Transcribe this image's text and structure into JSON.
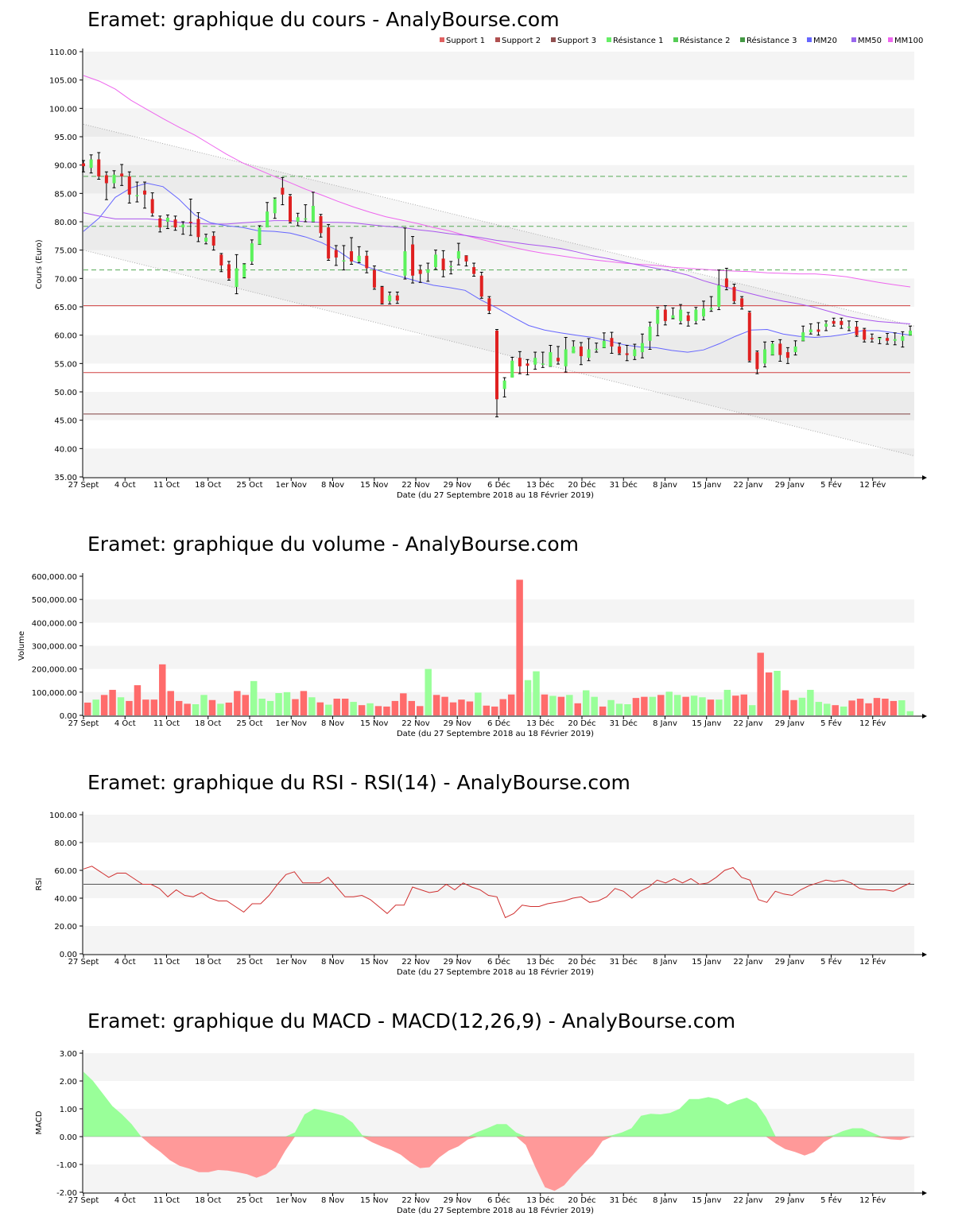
{
  "x_axis": {
    "ticks": [
      "27 Sept",
      "4 Oct",
      "11 Oct",
      "18 Oct",
      "25 Oct",
      "1er Nov",
      "8 Nov",
      "15 Nov",
      "22 Nov",
      "29 Nov",
      "6 Déc",
      "13 Déc",
      "20 Déc",
      "31 Déc",
      "8 Janv",
      "15 Janv",
      "22 Janv",
      "29 Janv",
      "5 Fév",
      "12 Fév"
    ],
    "label": "Date (du 27 Septembre 2018 au 18 Février 2019)"
  },
  "colors": {
    "up": "#5cf25c",
    "down": "#e02020",
    "mm20": "#6666ff",
    "mm50": "#aa55ee",
    "mm100": "#ee66ee",
    "support": "#d04040",
    "resistance": "#55aa55",
    "vol_up": "#99ff99",
    "vol_down": "#ff6b6b",
    "rsi": "#d03030",
    "macd_pos": "#99ff99",
    "macd_neg": "#ff9999"
  },
  "chart_data": [
    {
      "type": "candlestick",
      "title": "Eramet: graphique du cours - AnalyBourse.com",
      "ylabel": "Cours (Euro)",
      "ylim": [
        35,
        110
      ],
      "yticks": [
        "35.00",
        "40.00",
        "45.00",
        "50.00",
        "55.00",
        "60.00",
        "65.00",
        "70.00",
        "75.00",
        "80.00",
        "85.00",
        "90.00",
        "95.00",
        "100.00",
        "105.00",
        "110.00"
      ],
      "legend": [
        "Support 1",
        "Support 2",
        "Support 3",
        "Résistance 1",
        "Résistance 2",
        "Résistance 3",
        "MM20",
        "MM50",
        "MM100"
      ],
      "legend_colors": [
        "#e06060",
        "#b05050",
        "#905050",
        "#66ee66",
        "#55cc55",
        "#449944",
        "#6666ff",
        "#9966ee",
        "#ee66ee"
      ],
      "supports": [
        65.2,
        53.4,
        46.1
      ],
      "resistances": [
        88.0,
        79.2,
        71.5
      ],
      "channel_upper": [
        97.2,
        61.6
      ],
      "channel_lower": [
        75.0,
        38.7
      ],
      "candles": [
        [
          90.3,
          89.8,
          90.8,
          88.8
        ],
        [
          89.5,
          91.0,
          91.8,
          88.6
        ],
        [
          91.0,
          88.0,
          92.2,
          87.5
        ],
        [
          88.2,
          86.8,
          88.8,
          83.9
        ],
        [
          86.8,
          88.3,
          89.0,
          86.0
        ],
        [
          88.5,
          88.0,
          90.1,
          86.4
        ],
        [
          88.0,
          84.8,
          88.8,
          83.3
        ],
        [
          84.5,
          84.7,
          87.0,
          83.5
        ],
        [
          85.5,
          84.8,
          87.0,
          82.4
        ],
        [
          84.0,
          81.5,
          85.1,
          81.0
        ],
        [
          80.6,
          79.0,
          81.0,
          78.2
        ],
        [
          80.0,
          80.7,
          81.2,
          78.8
        ],
        [
          80.4,
          79.0,
          81.0,
          78.5
        ],
        [
          79.0,
          79.5,
          80.0,
          77.8
        ],
        [
          80.0,
          79.8,
          84.0,
          77.6
        ],
        [
          80.5,
          77.3,
          81.6,
          76.5
        ],
        [
          76.5,
          77.2,
          77.8,
          76.1
        ],
        [
          77.5,
          75.8,
          78.2,
          75.0
        ],
        [
          74.2,
          72.3,
          74.4,
          71.2
        ],
        [
          72.5,
          70.0,
          73.0,
          69.7
        ],
        [
          68.5,
          71.8,
          74.2,
          67.3
        ],
        [
          70.2,
          72.5,
          72.6,
          70.1
        ],
        [
          73.0,
          76.2,
          76.8,
          72.5
        ],
        [
          76.0,
          79.0,
          79.3,
          76.0
        ],
        [
          79.0,
          81.8,
          83.4,
          79.2
        ],
        [
          81.5,
          84.0,
          84.2,
          80.6
        ],
        [
          86.0,
          84.8,
          87.8,
          83.0
        ],
        [
          84.5,
          80.0,
          84.8,
          79.8
        ],
        [
          80.0,
          80.8,
          81.5,
          79.3
        ],
        [
          80.5,
          80.6,
          83.0,
          80.0
        ],
        [
          80.0,
          82.8,
          85.2,
          80.0
        ],
        [
          81.0,
          78.0,
          81.3,
          77.3
        ],
        [
          79.0,
          73.5,
          79.5,
          73.2
        ],
        [
          75.0,
          73.7,
          75.8,
          72.3
        ],
        [
          73.0,
          73.2,
          75.8,
          71.5
        ],
        [
          74.8,
          73.0,
          77.2,
          72.5
        ],
        [
          73.0,
          74.0,
          75.6,
          72.8
        ],
        [
          74.0,
          71.8,
          74.8,
          71.0
        ],
        [
          71.5,
          68.4,
          72.2,
          68.1
        ],
        [
          68.5,
          65.6,
          68.6,
          65.5
        ],
        [
          66.0,
          67.0,
          67.6,
          65.5
        ],
        [
          67.0,
          66.1,
          67.6,
          65.6
        ],
        [
          70.5,
          74.8,
          78.9,
          69.9
        ],
        [
          76.0,
          70.5,
          77.4,
          69.2
        ],
        [
          71.5,
          70.8,
          72.3,
          69.3
        ],
        [
          71.0,
          71.6,
          72.7,
          69.5
        ],
        [
          72.0,
          74.2,
          75.0,
          71.6
        ],
        [
          73.5,
          71.5,
          74.9,
          70.3
        ],
        [
          72.0,
          72.2,
          73.0,
          70.8
        ],
        [
          73.5,
          74.8,
          76.2,
          72.4
        ],
        [
          74.0,
          73.0,
          74.0,
          72.2
        ],
        [
          72.0,
          70.8,
          72.7,
          70.4
        ],
        [
          70.5,
          66.8,
          71.1,
          66.5
        ],
        [
          66.5,
          64.3,
          66.8,
          63.8
        ],
        [
          60.8,
          48.7,
          61.0,
          45.6
        ],
        [
          50.5,
          52.0,
          52.5,
          49.1
        ],
        [
          52.5,
          55.5,
          56.1,
          52.8
        ],
        [
          56.0,
          54.5,
          57.1,
          53.2
        ],
        [
          55.0,
          54.6,
          55.7,
          53.0
        ],
        [
          54.8,
          56.0,
          57.0,
          54.0
        ],
        [
          55.0,
          55.0,
          57.0,
          54.3
        ],
        [
          54.5,
          57.0,
          58.2,
          54.5
        ],
        [
          56.0,
          55.4,
          58.0,
          54.9
        ],
        [
          54.5,
          57.5,
          59.6,
          53.5
        ],
        [
          56.8,
          58.0,
          59.0,
          57.1
        ],
        [
          58.0,
          56.3,
          58.7,
          54.8
        ],
        [
          56.0,
          57.5,
          59.4,
          55.5
        ],
        [
          57.5,
          57.6,
          58.6,
          57.0
        ],
        [
          57.8,
          59.0,
          60.4,
          57.8
        ],
        [
          59.5,
          58.0,
          60.5,
          56.8
        ],
        [
          58.0,
          56.8,
          58.6,
          56.6
        ],
        [
          56.8,
          56.5,
          58.2,
          55.5
        ],
        [
          56.3,
          57.5,
          58.4,
          55.7
        ],
        [
          57.0,
          58.6,
          60.2,
          56.0
        ],
        [
          59.0,
          61.5,
          62.3,
          57.5
        ],
        [
          62.0,
          64.5,
          64.9,
          59.9
        ],
        [
          64.5,
          62.5,
          65.2,
          61.8
        ],
        [
          63.0,
          63.5,
          64.8,
          62.9
        ],
        [
          62.5,
          64.5,
          65.4,
          62.0
        ],
        [
          63.5,
          62.5,
          64.0,
          61.6
        ],
        [
          62.5,
          64.5,
          64.9,
          62.0
        ],
        [
          63.3,
          64.7,
          66.0,
          62.7
        ],
        [
          64.5,
          64.8,
          66.8,
          64.2
        ],
        [
          65.0,
          68.8,
          71.5,
          64.5
        ],
        [
          70.0,
          68.5,
          71.8,
          68.0
        ],
        [
          68.5,
          66.0,
          69.0,
          65.6
        ],
        [
          66.5,
          65.0,
          66.8,
          64.6
        ],
        [
          64.0,
          55.5,
          64.2,
          55.3
        ],
        [
          57.0,
          54.0,
          57.2,
          53.2
        ],
        [
          55.0,
          57.5,
          58.8,
          54.4
        ],
        [
          56.5,
          58.5,
          58.9,
          56.5
        ],
        [
          58.5,
          56.5,
          59.2,
          55.4
        ],
        [
          57.0,
          56.0,
          57.8,
          55.0
        ],
        [
          57.0,
          58.0,
          59.0,
          56.5
        ],
        [
          59.0,
          60.5,
          61.6,
          59.0
        ],
        [
          60.5,
          61.0,
          62.0,
          60.2
        ],
        [
          61.0,
          60.6,
          62.2,
          60.0
        ],
        [
          61.5,
          62.0,
          62.5,
          60.8
        ],
        [
          62.5,
          62.0,
          63.0,
          61.6
        ],
        [
          62.5,
          61.8,
          63.0,
          61.2
        ],
        [
          61.5,
          61.5,
          62.5,
          60.8
        ],
        [
          61.5,
          60.0,
          62.4,
          59.8
        ],
        [
          61.0,
          59.2,
          61.2,
          58.8
        ],
        [
          59.5,
          59.3,
          60.2,
          58.8
        ],
        [
          59.5,
          59.5,
          59.6,
          58.5
        ],
        [
          59.5,
          59.0,
          60.3,
          58.4
        ],
        [
          59.0,
          59.3,
          60.4,
          58.3
        ],
        [
          59.0,
          59.8,
          60.6,
          57.9
        ],
        [
          60.0,
          60.8,
          61.6,
          60.0
        ]
      ],
      "mm20": [
        78.3,
        80.7,
        84.3,
        86.0,
        86.8,
        86.2,
        84.0,
        81.2,
        79.8,
        79.3,
        79.0,
        78.4,
        78.3,
        78.0,
        77.3,
        76.3,
        74.9,
        73.0,
        71.9,
        71.0,
        70.3,
        69.5,
        68.8,
        68.4,
        67.9,
        66.2,
        64.8,
        63.2,
        61.7,
        60.9,
        60.4,
        60.0,
        59.6,
        59.0,
        58.3,
        57.9,
        57.8,
        57.3,
        57.0,
        57.4,
        58.5,
        59.8,
        60.9,
        61.0,
        60.2,
        59.8,
        59.6,
        59.8,
        60.2,
        60.8,
        60.8,
        60.4,
        60.0
      ],
      "mm50": [
        81.6,
        81.0,
        80.5,
        80.5,
        80.5,
        80.3,
        79.9,
        79.7,
        79.6,
        79.6,
        79.8,
        80.0,
        80.2,
        80.2,
        80.0,
        79.9,
        79.9,
        79.8,
        79.5,
        79.2,
        79.0,
        78.6,
        78.3,
        77.9,
        77.6,
        77.2,
        76.7,
        76.4,
        76.0,
        75.7,
        75.3,
        74.7,
        74.0,
        73.5,
        72.9,
        72.3,
        71.8,
        71.3,
        70.6,
        69.6,
        68.8,
        68.0,
        67.3,
        66.6,
        66.0,
        65.5,
        64.9,
        64.1,
        63.3,
        62.8,
        62.4,
        62.2,
        62.0
      ],
      "mm100": [
        105.8,
        104.8,
        103.4,
        101.4,
        99.8,
        98.2,
        96.7,
        95.3,
        93.6,
        91.9,
        90.4,
        89.2,
        88.0,
        86.9,
        85.7,
        84.7,
        83.6,
        82.6,
        81.7,
        80.9,
        80.3,
        79.7,
        79.0,
        78.4,
        77.6,
        76.9,
        76.2,
        75.5,
        74.9,
        74.4,
        74.0,
        73.6,
        73.3,
        73.0,
        72.7,
        72.5,
        72.3,
        72.0,
        71.8,
        71.6,
        71.4,
        71.3,
        71.2,
        71.0,
        70.9,
        70.8,
        70.8,
        70.6,
        70.3,
        69.8,
        69.3,
        68.9,
        68.5
      ]
    },
    {
      "type": "bar",
      "title": "Eramet: graphique du volume - AnalyBourse.com",
      "ylabel": "Volume",
      "ylim": [
        0,
        600000
      ],
      "yticks": [
        "0.00",
        "100,000.00",
        "200,000.00",
        "300,000.00",
        "400,000.00",
        "500,000.00",
        "600,000.00"
      ],
      "values": [
        55000,
        68000,
        88000,
        110000,
        78000,
        62000,
        130000,
        68000,
        68000,
        220000,
        105000,
        62000,
        50000,
        48000,
        88000,
        66000,
        50000,
        55000,
        105000,
        88000,
        148000,
        72000,
        62000,
        96000,
        100000,
        70000,
        105000,
        78000,
        56000,
        46000,
        72000,
        72000,
        58000,
        44000,
        52000,
        40000,
        38000,
        62000,
        95000,
        62000,
        40000,
        200000,
        88000,
        80000,
        56000,
        68000,
        60000,
        98000,
        42000,
        38000,
        70000,
        90000,
        585000,
        152000,
        190000,
        90000,
        84000,
        80000,
        88000,
        52000,
        108000,
        80000,
        38000,
        66000,
        50000,
        48000,
        75000,
        80000,
        80000,
        88000,
        102000,
        88000,
        80000,
        85000,
        78000,
        68000,
        68000,
        110000,
        85000,
        90000,
        44000,
        270000,
        185000,
        192000,
        108000,
        66000,
        76000,
        110000,
        58000,
        50000,
        44000,
        38000,
        64000,
        72000,
        52000,
        75000,
        72000,
        62000,
        65000,
        18000
      ],
      "up": [
        0,
        1,
        0,
        0,
        1,
        0,
        0,
        0,
        0,
        0,
        0,
        0,
        0,
        1,
        1,
        0,
        1,
        0,
        0,
        0,
        1,
        1,
        1,
        1,
        1,
        0,
        0,
        1,
        0,
        1,
        0,
        0,
        1,
        0,
        1,
        0,
        0,
        0,
        0,
        0,
        0,
        1,
        0,
        0,
        0,
        0,
        0,
        1,
        0,
        0,
        0,
        0,
        0,
        1,
        1,
        0,
        1,
        0,
        1,
        0,
        1,
        1,
        0,
        1,
        1,
        1,
        0,
        0,
        1,
        0,
        1,
        1,
        0,
        1,
        1,
        0,
        1,
        1,
        0,
        0,
        1,
        0,
        0,
        1,
        0,
        0,
        1,
        1,
        1,
        1,
        0,
        1,
        0,
        0,
        0,
        0,
        0,
        0,
        1,
        1
      ]
    },
    {
      "type": "line",
      "title": "Eramet: graphique du RSI - RSI(14) - AnalyBourse.com",
      "ylabel": "RSI",
      "ylim": [
        0,
        100
      ],
      "yticks": [
        "0.00",
        "20.00",
        "40.00",
        "60.00",
        "80.00",
        "100.00"
      ],
      "reference_line": 50,
      "values": [
        61,
        63,
        59,
        55,
        58,
        58,
        54,
        50,
        50,
        47,
        41,
        46,
        42,
        41,
        44,
        40,
        38,
        38,
        34,
        30,
        36,
        36,
        42,
        50,
        57,
        59,
        51,
        51,
        51,
        55,
        48,
        41,
        41,
        42,
        39,
        34,
        29,
        35,
        35,
        48,
        46,
        44,
        45,
        50,
        46,
        51,
        48,
        46,
        42,
        41,
        26,
        29,
        35,
        34,
        34,
        36,
        37,
        38,
        40,
        41,
        37,
        38,
        41,
        47,
        45,
        40,
        45,
        48,
        53,
        51,
        54,
        51,
        54,
        50,
        51,
        55,
        60,
        62,
        55,
        53,
        39,
        37,
        45,
        43,
        42,
        46,
        49,
        51,
        53,
        52,
        53,
        51,
        47,
        46,
        46,
        46,
        45,
        48,
        51
      ]
    },
    {
      "type": "area",
      "title": "Eramet: graphique du MACD - MACD(12,26,9) - AnalyBourse.com",
      "ylabel": "MACD",
      "ylim": [
        -2,
        3
      ],
      "yticks": [
        "-2.00",
        "-1.00",
        "0.00",
        "1.00",
        "2.00",
        "3.00"
      ],
      "values": [
        2.33,
        2.0,
        1.55,
        1.1,
        0.8,
        0.45,
        0.0,
        -0.3,
        -0.55,
        -0.85,
        -1.05,
        -1.15,
        -1.28,
        -1.28,
        -1.2,
        -1.22,
        -1.28,
        -1.35,
        -1.48,
        -1.35,
        -1.1,
        -0.5,
        0.15,
        0.8,
        1.0,
        0.93,
        0.85,
        0.75,
        0.5,
        0.05,
        -0.2,
        -0.35,
        -0.48,
        -0.65,
        -0.92,
        -1.13,
        -1.1,
        -0.75,
        -0.5,
        -0.35,
        -0.1,
        0.17,
        0.3,
        0.45,
        0.45,
        0.15,
        -0.3,
        -1.1,
        -1.82,
        -1.95,
        -1.75,
        -1.35,
        -1.0,
        -0.65,
        -0.15,
        0.05,
        0.15,
        0.3,
        0.75,
        0.82,
        0.8,
        0.85,
        1.0,
        1.35,
        1.35,
        1.42,
        1.35,
        1.15,
        1.3,
        1.4,
        1.2,
        0.7,
        -0.25,
        -0.45,
        -0.55,
        -0.68,
        -0.55,
        -0.2,
        0.05,
        0.2,
        0.3,
        0.3,
        0.15,
        -0.05,
        -0.1,
        -0.12,
        -0.02
      ]
    }
  ]
}
